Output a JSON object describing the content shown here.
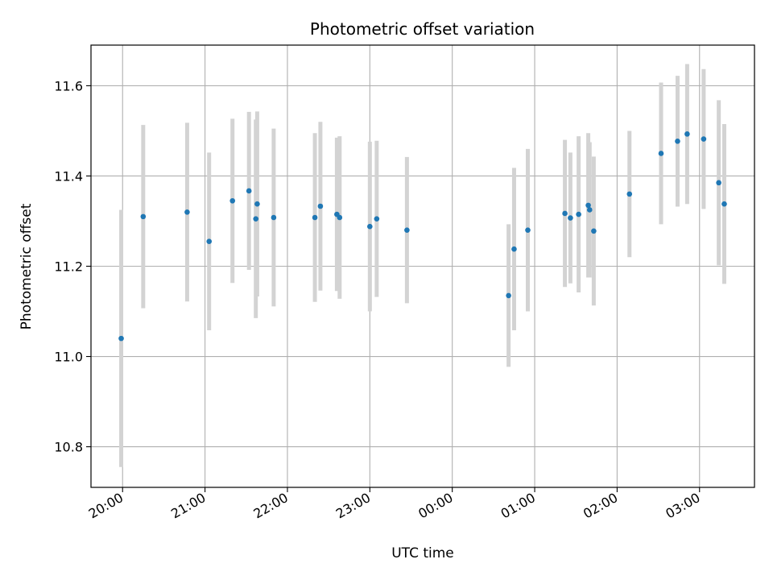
{
  "chart_data": {
    "type": "scatter",
    "title": "Photometric offset variation",
    "xlabel": "UTC time",
    "ylabel": "Photometric offset",
    "xlim": [
      "19:37",
      "03:40"
    ],
    "ylim": [
      10.71,
      11.69
    ],
    "grid": true,
    "x_ticks": [
      "20:00",
      "21:00",
      "22:00",
      "23:00",
      "00:00",
      "01:00",
      "02:00",
      "03:00"
    ],
    "y_ticks": [
      "10.8",
      "11.0",
      "11.2",
      "11.4",
      "11.6"
    ],
    "marker_color": "#1f77b4",
    "errorbar_color": "#d3d3d3",
    "points": [
      {
        "x": "19:59",
        "y": 11.04,
        "err": 0.285
      },
      {
        "x": "20:15",
        "y": 11.31,
        "err": 0.203
      },
      {
        "x": "20:47",
        "y": 11.32,
        "err": 0.198
      },
      {
        "x": "21:03",
        "y": 11.255,
        "err": 0.197
      },
      {
        "x": "21:20",
        "y": 11.345,
        "err": 0.182
      },
      {
        "x": "21:32",
        "y": 11.367,
        "err": 0.175
      },
      {
        "x": "21:37",
        "y": 11.305,
        "err": 0.22
      },
      {
        "x": "21:38",
        "y": 11.338,
        "err": 0.205
      },
      {
        "x": "21:50",
        "y": 11.308,
        "err": 0.197
      },
      {
        "x": "22:20",
        "y": 11.308,
        "err": 0.187
      },
      {
        "x": "22:24",
        "y": 11.333,
        "err": 0.187
      },
      {
        "x": "22:36",
        "y": 11.315,
        "err": 0.17
      },
      {
        "x": "22:38",
        "y": 11.308,
        "err": 0.18
      },
      {
        "x": "23:00",
        "y": 11.288,
        "err": 0.188
      },
      {
        "x": "23:05",
        "y": 11.305,
        "err": 0.173
      },
      {
        "x": "23:27",
        "y": 11.28,
        "err": 0.162
      },
      {
        "x": "00:41",
        "y": 11.135,
        "err": 0.158
      },
      {
        "x": "00:45",
        "y": 11.238,
        "err": 0.18
      },
      {
        "x": "00:55",
        "y": 11.28,
        "err": 0.18
      },
      {
        "x": "01:22",
        "y": 11.317,
        "err": 0.163
      },
      {
        "x": "01:26",
        "y": 11.307,
        "err": 0.145
      },
      {
        "x": "01:32",
        "y": 11.315,
        "err": 0.173
      },
      {
        "x": "01:39",
        "y": 11.335,
        "err": 0.16
      },
      {
        "x": "01:40",
        "y": 11.325,
        "err": 0.15
      },
      {
        "x": "01:43",
        "y": 11.278,
        "err": 0.165
      },
      {
        "x": "02:09",
        "y": 11.36,
        "err": 0.14
      },
      {
        "x": "02:32",
        "y": 11.45,
        "err": 0.157
      },
      {
        "x": "02:44",
        "y": 11.477,
        "err": 0.145
      },
      {
        "x": "02:51",
        "y": 11.493,
        "err": 0.155
      },
      {
        "x": "03:03",
        "y": 11.482,
        "err": 0.155
      },
      {
        "x": "03:14",
        "y": 11.385,
        "err": 0.183
      },
      {
        "x": "03:18",
        "y": 11.338,
        "err": 0.177
      }
    ]
  }
}
